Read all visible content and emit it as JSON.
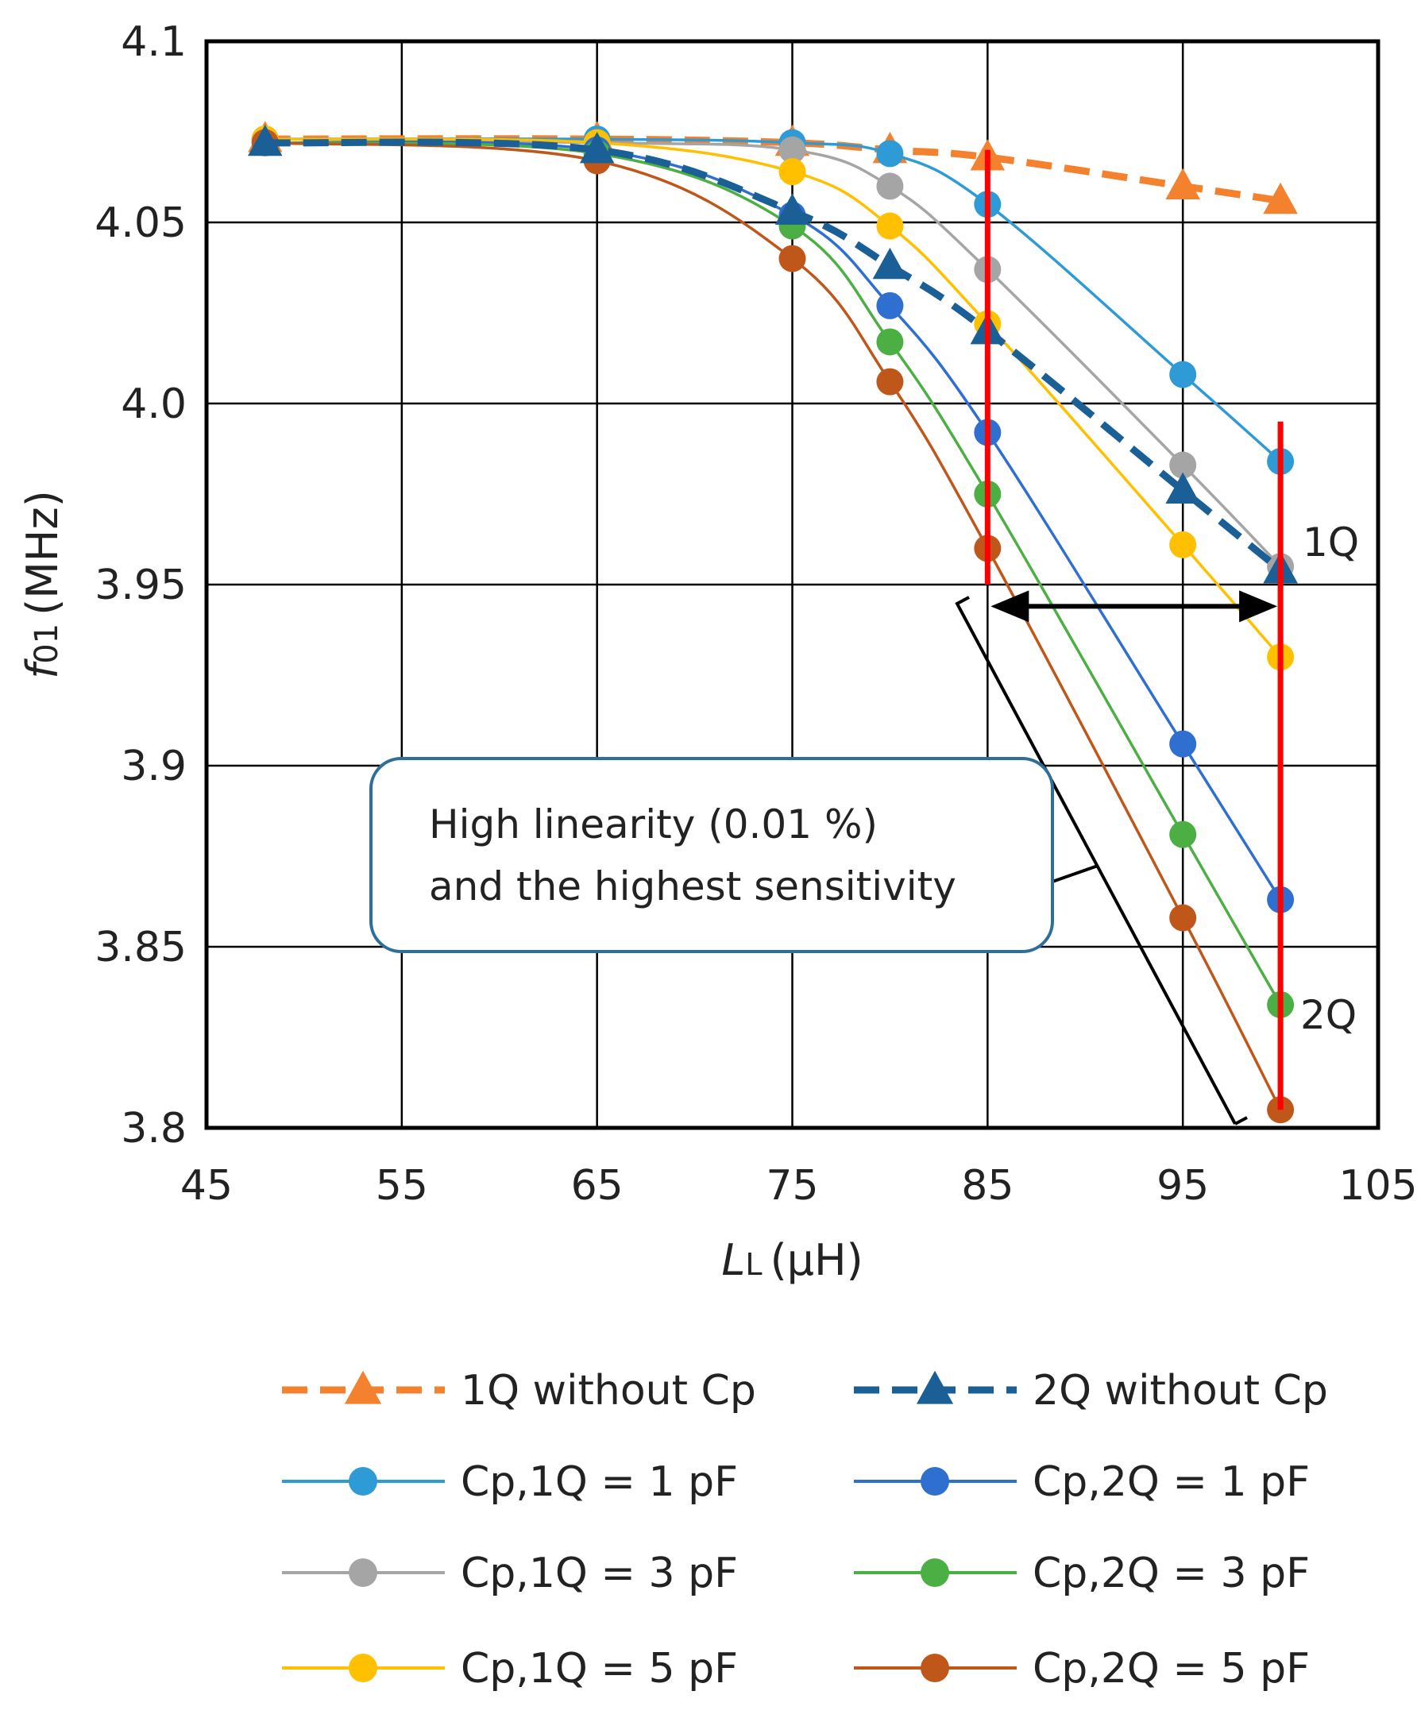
{
  "chart_data": {
    "type": "line",
    "title": "",
    "xlabel_italic": "L",
    "xlabel_sub": "L",
    "xlabel_unit": "(μH)",
    "ylabel_italic": "f",
    "ylabel_sub": "01",
    "ylabel_unit": "(MHz)",
    "xlim": [
      45,
      105
    ],
    "ylim": [
      3.8,
      4.1
    ],
    "xticks": [
      "45",
      "55",
      "65",
      "75",
      "85",
      "95",
      "105"
    ],
    "yticks": [
      "3.8",
      "3.85",
      "3.9",
      "3.95",
      "4.0",
      "4.05",
      "4.1"
    ],
    "grid": true,
    "legend_position": "bottom",
    "series": [
      {
        "name": "1Q without Cp",
        "color": "#F4812D",
        "style": "dashed",
        "marker": "triangle",
        "x": [
          48,
          65,
          75,
          80,
          85,
          95,
          100
        ],
        "y": [
          4.073,
          4.073,
          4.072,
          4.07,
          4.068,
          4.06,
          4.056
        ]
      },
      {
        "name": "2Q without Cp",
        "color": "#1A5F96",
        "style": "dashed",
        "marker": "triangle",
        "x": [
          48,
          65,
          75,
          80,
          85,
          95,
          100
        ],
        "y": [
          4.072,
          4.07,
          4.053,
          4.038,
          4.02,
          3.976,
          3.954
        ]
      },
      {
        "name": "Cp,1Q = 1 pF",
        "color": "#2E9BD6",
        "style": "solid",
        "marker": "circle",
        "x": [
          48,
          65,
          75,
          80,
          85,
          95,
          100
        ],
        "y": [
          4.073,
          4.073,
          4.072,
          4.069,
          4.055,
          4.008,
          3.984
        ]
      },
      {
        "name": "Cp,2Q = 1 pF",
        "color": "#2F6FD0",
        "style": "solid",
        "marker": "circle",
        "x": [
          48,
          65,
          75,
          80,
          85,
          95,
          100
        ],
        "y": [
          4.072,
          4.07,
          4.052,
          4.027,
          3.992,
          3.906,
          3.863
        ]
      },
      {
        "name": "Cp,1Q = 3 pF",
        "color": "#A5A5A5",
        "style": "solid",
        "marker": "circle",
        "x": [
          48,
          65,
          75,
          80,
          85,
          95,
          100
        ],
        "y": [
          4.073,
          4.072,
          4.07,
          4.06,
          4.037,
          3.983,
          3.955
        ]
      },
      {
        "name": "Cp,2Q = 3 pF",
        "color": "#4CAF43",
        "style": "solid",
        "marker": "circle",
        "x": [
          48,
          65,
          75,
          80,
          85,
          95,
          100
        ],
        "y": [
          4.072,
          4.069,
          4.049,
          4.017,
          3.975,
          3.881,
          3.834
        ]
      },
      {
        "name": "Cp,1Q = 5 pF",
        "color": "#FFC000",
        "style": "solid",
        "marker": "circle",
        "x": [
          48,
          65,
          75,
          80,
          85,
          95,
          100
        ],
        "y": [
          4.073,
          4.072,
          4.064,
          4.049,
          4.022,
          3.961,
          3.93
        ]
      },
      {
        "name": "Cp,2Q = 5 pF",
        "color": "#C0571A",
        "style": "solid",
        "marker": "circle",
        "x": [
          48,
          65,
          75,
          80,
          85,
          95,
          100
        ],
        "y": [
          4.072,
          4.067,
          4.04,
          4.006,
          3.96,
          3.858,
          3.805
        ]
      }
    ],
    "annotations": {
      "label_1q": "1Q",
      "label_2q": "2Q",
      "callout_line1": "High linearity (0.01 %)",
      "callout_line2": "and the highest sensitivity",
      "red_lines": [
        {
          "x": 85,
          "y_from": 4.07,
          "y_to": 3.95
        },
        {
          "x": 100,
          "y_from": 3.995,
          "y_to": 3.805
        }
      ],
      "arrow": {
        "x_from": 85,
        "x_to": 100,
        "y": 3.944
      }
    }
  }
}
